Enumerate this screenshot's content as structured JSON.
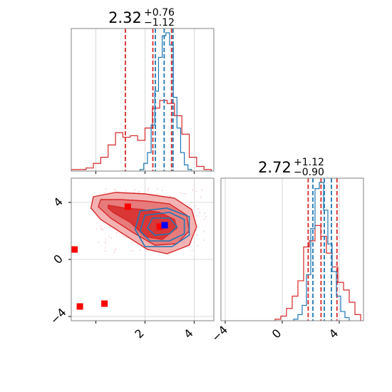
{
  "colors": {
    "red": "#d62728",
    "blue": "#1f77b4",
    "point_red": "#ff0000",
    "point_blue": "#0000ff",
    "contour_fill_light": "#f4b3b3",
    "contour_fill_mid": "#e77b7b",
    "contour_fill_dark": "#d93636",
    "scatter_faint": "#f2c0c8"
  },
  "chart_data": [
    {
      "id": "marginal_1",
      "type": "histogram",
      "title": {
        "value": "2.32",
        "plus": "+0.76",
        "minus": "−1.12"
      },
      "xlim": [
        -1.0,
        4.8
      ],
      "grid": true,
      "xticks": [
        0,
        2,
        4
      ],
      "series": [
        {
          "color": "red",
          "quantiles": [
            1.2,
            2.32,
            3.08
          ],
          "bins_x": [
            -1.0,
            -0.7,
            -0.4,
            -0.1,
            0.2,
            0.5,
            0.8,
            1.1,
            1.4,
            1.7,
            2.0,
            2.3,
            2.6,
            2.9,
            3.2,
            3.5,
            3.8,
            4.1,
            4.4,
            4.7
          ],
          "heights": [
            0.01,
            0.01,
            0.02,
            0.05,
            0.09,
            0.17,
            0.25,
            0.22,
            0.23,
            0.2,
            0.28,
            0.41,
            0.46,
            0.44,
            0.36,
            0.24,
            0.09,
            0.03,
            0.01
          ]
        },
        {
          "color": "blue",
          "quantiles": [
            2.42,
            2.78,
            3.14
          ],
          "bins_x": [
            1.8,
            1.95,
            2.1,
            2.25,
            2.4,
            2.55,
            2.7,
            2.85,
            3.0,
            3.15,
            3.3,
            3.45,
            3.6,
            3.75,
            3.9
          ],
          "heights": [
            0.01,
            0.05,
            0.12,
            0.3,
            0.52,
            0.74,
            0.88,
            0.9,
            0.82,
            0.48,
            0.28,
            0.12,
            0.04,
            0.01
          ]
        }
      ]
    },
    {
      "id": "joint",
      "type": "contour",
      "xlim": [
        -1.0,
        4.8
      ],
      "ylim": [
        -4.3,
        5.7
      ],
      "grid": true,
      "xticks": [
        2,
        4
      ],
      "yticks": [
        -4,
        0,
        4
      ],
      "red_contours": [
        {
          "level": 3,
          "points": [
            [
              0.5,
              3.8
            ],
            [
              1.2,
              3.6
            ],
            [
              1.9,
              3.5
            ],
            [
              2.6,
              3.3
            ],
            [
              3.2,
              2.8
            ],
            [
              3.3,
              2.2
            ],
            [
              2.7,
              1.4
            ],
            [
              2.0,
              1.6
            ],
            [
              1.4,
              2.6
            ],
            [
              0.7,
              3.3
            ],
            [
              0.5,
              3.6
            ]
          ]
        },
        {
          "level": 2,
          "points": [
            [
              0.2,
              4.2
            ],
            [
              1.0,
              4.2
            ],
            [
              2.0,
              4.1
            ],
            [
              3.0,
              3.9
            ],
            [
              3.7,
              3.1
            ],
            [
              3.8,
              2.0
            ],
            [
              3.3,
              1.1
            ],
            [
              2.4,
              1.0
            ],
            [
              1.5,
              1.9
            ],
            [
              0.6,
              2.9
            ],
            [
              0.1,
              3.7
            ]
          ]
        },
        {
          "level": 1,
          "points": [
            [
              -0.1,
              4.4
            ],
            [
              0.8,
              4.7
            ],
            [
              2.0,
              4.6
            ],
            [
              3.2,
              4.3
            ],
            [
              3.9,
              3.5
            ],
            [
              4.1,
              2.3
            ],
            [
              3.8,
              1.0
            ],
            [
              2.9,
              0.4
            ],
            [
              2.1,
              0.7
            ],
            [
              1.1,
              1.8
            ],
            [
              0.2,
              2.8
            ],
            [
              -0.2,
              3.6
            ]
          ]
        }
      ],
      "blue_contours": [
        {
          "level": 3,
          "points": [
            [
              2.3,
              2.9
            ],
            [
              3.0,
              2.9
            ],
            [
              3.3,
              2.3
            ],
            [
              3.0,
              1.8
            ],
            [
              2.4,
              1.7
            ],
            [
              2.1,
              2.2
            ]
          ]
        },
        {
          "level": 2,
          "points": [
            [
              2.0,
              3.1
            ],
            [
              3.0,
              3.3
            ],
            [
              3.6,
              2.8
            ],
            [
              3.6,
              1.8
            ],
            [
              3.0,
              1.3
            ],
            [
              2.2,
              1.3
            ],
            [
              1.8,
              2.0
            ]
          ]
        },
        {
          "level": 1,
          "points": [
            [
              1.8,
              3.4
            ],
            [
              2.9,
              3.6
            ],
            [
              3.8,
              3.0
            ],
            [
              3.8,
              1.7
            ],
            [
              3.1,
              0.9
            ],
            [
              2.0,
              0.9
            ],
            [
              1.6,
              2.1
            ]
          ]
        }
      ],
      "red_points": [
        [
          -1.0,
          0.7
        ],
        [
          -0.65,
          -3.3
        ],
        [
          0.35,
          -3.1
        ],
        [
          1.3,
          3.7
        ],
        [
          2.6,
          2.3
        ]
      ],
      "blue_points": [
        [
          2.8,
          2.4
        ]
      ]
    },
    {
      "id": "marginal_2",
      "type": "histogram",
      "title": {
        "value": "2.72",
        "plus": "+1.12",
        "minus": "−0.90"
      },
      "xlim": [
        -4.3,
        5.7
      ],
      "grid": true,
      "xticks": [
        -4,
        0,
        4
      ],
      "series": [
        {
          "color": "red",
          "quantiles": [
            1.82,
            2.72,
            3.84
          ],
          "bins_x": [
            -0.5,
            -0.1,
            0.3,
            0.7,
            1.1,
            1.5,
            1.9,
            2.3,
            2.7,
            3.1,
            3.5,
            3.9,
            4.3,
            4.7,
            5.1,
            5.5
          ],
          "heights": [
            0.01,
            0.03,
            0.08,
            0.16,
            0.26,
            0.48,
            0.52,
            0.62,
            0.55,
            0.44,
            0.35,
            0.25,
            0.2,
            0.12,
            0.04
          ]
        },
        {
          "color": "blue",
          "quantiles": [
            2.15,
            2.95,
            3.45
          ],
          "bins_x": [
            0.8,
            1.1,
            1.4,
            1.7,
            2.0,
            2.3,
            2.6,
            2.9,
            3.2,
            3.5,
            3.8,
            4.1,
            4.4,
            4.7
          ],
          "heights": [
            0.01,
            0.04,
            0.1,
            0.3,
            0.6,
            0.86,
            0.9,
            0.72,
            0.5,
            0.32,
            0.16,
            0.06,
            0.02
          ]
        }
      ]
    }
  ]
}
